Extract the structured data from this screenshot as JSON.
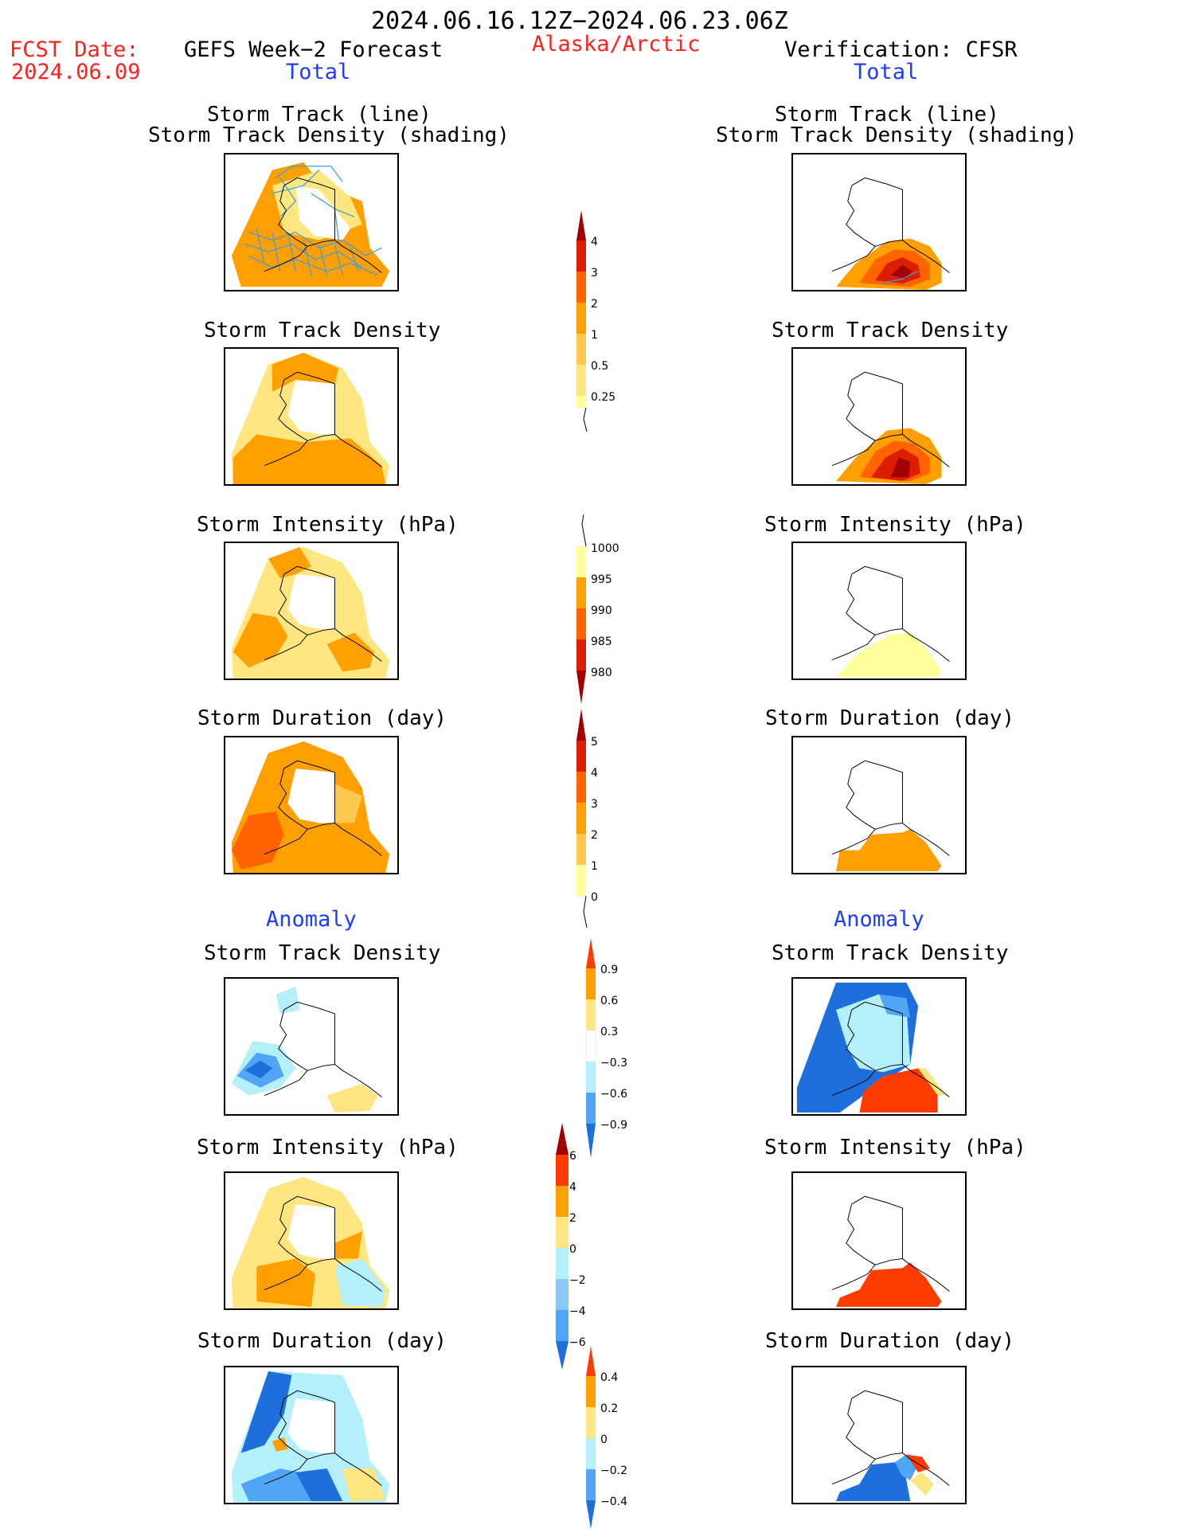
{
  "header": {
    "date_range": "2024.06.16.12Z−2024.06.23.06Z",
    "fcst_label": "FCST Date:",
    "fcst_date": "2024.06.09",
    "left_title": "GEFS Week−2 Forecast",
    "region": "Alaska/Arctic",
    "right_title": "Verification: CFSR",
    "total_left": "Total",
    "total_right": "Total",
    "anomaly_left": "Anomaly",
    "anomaly_right": "Anomaly"
  },
  "panels": {
    "track_line": "Storm Track (line)",
    "track_shading": "Storm Track Density (shading)",
    "track_density": "Storm Track Density",
    "intensity": "Storm Intensity (hPa)",
    "duration": "Storm Duration (day)"
  },
  "colorbars": {
    "density": {
      "labels": [
        "4",
        "3",
        "2",
        "1",
        "0.5",
        "0.25"
      ],
      "colors": [
        "#a00000",
        "#dc1e00",
        "#ff6400",
        "#ffa000",
        "#ffc850",
        "#ffff9b"
      ]
    },
    "intensity": {
      "labels": [
        "1000",
        "995",
        "990",
        "985",
        "980"
      ],
      "colors": [
        "#ffff9b",
        "#ffa000",
        "#ff6400",
        "#dc1e00",
        "#a00000"
      ]
    },
    "duration": {
      "labels": [
        "5",
        "4",
        "3",
        "2",
        "1",
        "0"
      ],
      "colors": [
        "#a00000",
        "#dc1e00",
        "#ff6400",
        "#ffa000",
        "#ffc850",
        "#ffff9b"
      ]
    },
    "anom_density": {
      "labels": [
        "0.9",
        "0.6",
        "0.3",
        "−0.3",
        "−0.6",
        "−0.9"
      ]
    },
    "anom_intensity": {
      "labels": [
        "6",
        "4",
        "2",
        "0",
        "−2",
        "−4",
        "−6"
      ]
    },
    "anom_duration": {
      "labels": [
        "0.4",
        "0.2",
        "0",
        "−0.2",
        "−0.4"
      ]
    }
  },
  "palette": {
    "light_yellow": "#ffe680",
    "orange": "#ffa000",
    "dark_orange": "#ff6400",
    "red": "#ff3c00",
    "dark_red": "#a00000",
    "light_blue": "#b4f0fa",
    "mid_blue": "#50a5f5",
    "dark_blue": "#1e6edc",
    "track_line": "#3ca0dc"
  }
}
